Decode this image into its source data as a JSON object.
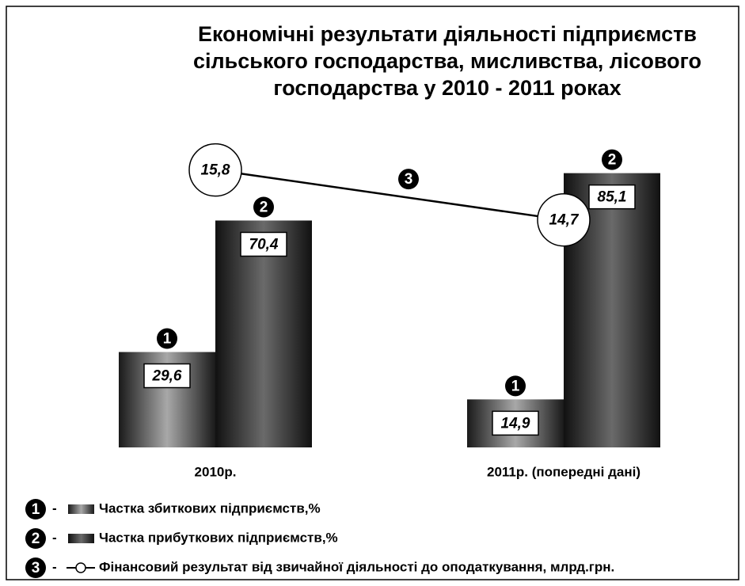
{
  "chart_data": {
    "type": "bar",
    "title": [
      "Економічні результати діяльності підприємств",
      "сільського господарства, мисливства, лісового",
      "господарства у 2010 - 2011 роках"
    ],
    "categories": [
      "2010р.",
      "2011р. (попередні дані)"
    ],
    "series": [
      {
        "name": "Частка збиткових підприємств,%",
        "marker": "1",
        "color": "#8a8a8a",
        "type": "bar",
        "values": [
          29.6,
          14.9
        ],
        "value_labels": [
          "29,6",
          "14,9"
        ]
      },
      {
        "name": "Частка прибуткових підприємств,%",
        "marker": "2",
        "color": "#3a3a3a",
        "type": "bar",
        "values": [
          70.4,
          85.1
        ],
        "value_labels": [
          "70,4",
          "85,1"
        ]
      },
      {
        "name": "Фінансовий результат від звичайної діяльності до оподаткування, млрд.грн.",
        "marker": "3",
        "color": "#000000",
        "type": "line",
        "values": [
          15.8,
          14.7
        ],
        "value_labels": [
          "15,8",
          "14,7"
        ]
      }
    ],
    "legend_separator": "-"
  }
}
